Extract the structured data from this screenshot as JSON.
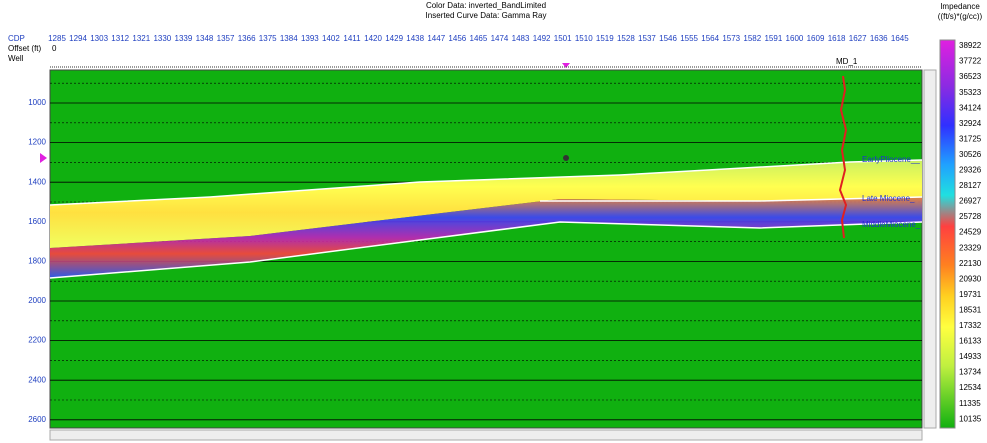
{
  "header": {
    "color_data": "Color Data: inverted_BandLimited",
    "curve_data": "Inserted Curve Data:  Gamma Ray"
  },
  "left_labels": {
    "cdp": "CDP",
    "offset": "Offset (ft)",
    "offset_value": "0",
    "well": "Well"
  },
  "cdp_labels": [
    "1285",
    "1294",
    "1303",
    "1312",
    "1321",
    "1330",
    "1339",
    "1348",
    "1357",
    "1366",
    "1375",
    "1384",
    "1393",
    "1402",
    "1411",
    "1420",
    "1429",
    "1438",
    "1447",
    "1456",
    "1465",
    "1474",
    "1483",
    "1492",
    "1501",
    "1510",
    "1519",
    "1528",
    "1537",
    "1546",
    "1555",
    "1564",
    "1573",
    "1582",
    "1591",
    "1600",
    "1609",
    "1618",
    "1627",
    "1636",
    "1645"
  ],
  "depth_labels": [
    "1000",
    "1200",
    "1400",
    "1600",
    "1800",
    "2000",
    "2200",
    "2400",
    "2600"
  ],
  "well_name": "MD_1",
  "horizons": [
    "EarlyPliocene__",
    "Late Miocene_",
    "MiddleMiocene_"
  ],
  "colorbar": {
    "title": "Impedance",
    "unit": "((ft/s)*(g/cc))",
    "labels": [
      "38922",
      "37722",
      "36523",
      "35323",
      "34124",
      "32924",
      "31725",
      "30526",
      "29326",
      "28127",
      "26927",
      "25728",
      "24529",
      "23329",
      "22130",
      "20930",
      "19731",
      "18531",
      "17332",
      "16133",
      "14933",
      "13734",
      "12534",
      "11335",
      "10135"
    ]
  }
}
